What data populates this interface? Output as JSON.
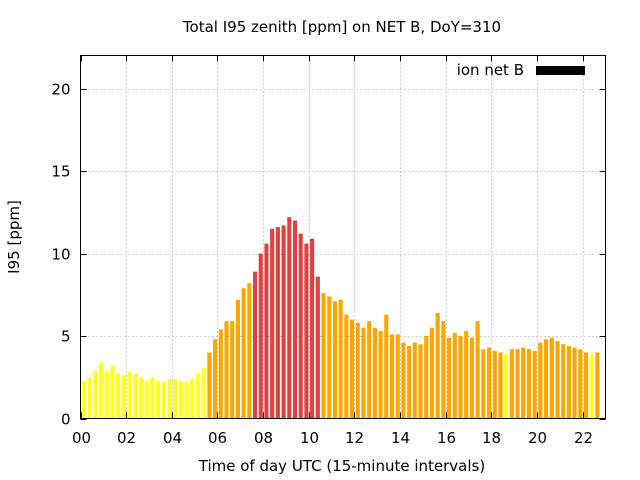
{
  "chart_data": {
    "type": "bar",
    "title": "Total I95 zenith [ppm] on NET B, DoY=310",
    "xlabel": "Time of day UTC (15-minute intervals)",
    "ylabel": "I95 [ppm]",
    "legend": {
      "label": "ion net B",
      "color": "#000000",
      "placement": "top-right"
    },
    "xlim": [
      0,
      23
    ],
    "ylim": [
      0,
      22
    ],
    "grid": true,
    "x_ticks": [
      {
        "value": 0,
        "label": "00"
      },
      {
        "value": 2,
        "label": "02"
      },
      {
        "value": 4,
        "label": "04"
      },
      {
        "value": 6,
        "label": "06"
      },
      {
        "value": 8,
        "label": "08"
      },
      {
        "value": 10,
        "label": "10"
      },
      {
        "value": 12,
        "label": "12"
      },
      {
        "value": 14,
        "label": "14"
      },
      {
        "value": 16,
        "label": "16"
      },
      {
        "value": 18,
        "label": "18"
      },
      {
        "value": 20,
        "label": "20"
      },
      {
        "value": 22,
        "label": "22"
      }
    ],
    "y_ticks": [
      {
        "value": 0,
        "label": "0"
      },
      {
        "value": 5,
        "label": "5"
      },
      {
        "value": 10,
        "label": "10"
      },
      {
        "value": 15,
        "label": "15"
      },
      {
        "value": 20,
        "label": "20"
      }
    ],
    "interval_hours": 0.25,
    "values": [
      2.3,
      2.5,
      2.9,
      3.4,
      2.9,
      3.2,
      2.7,
      2.6,
      2.8,
      2.7,
      2.5,
      2.3,
      2.5,
      2.3,
      2.2,
      2.4,
      2.4,
      2.3,
      2.2,
      2.4,
      2.7,
      3.1,
      4.0,
      4.8,
      5.4,
      5.9,
      5.9,
      7.2,
      7.9,
      8.2,
      8.9,
      10.0,
      10.6,
      11.5,
      11.6,
      11.7,
      12.2,
      12.0,
      11.2,
      10.6,
      10.9,
      8.6,
      7.6,
      7.4,
      7.1,
      7.2,
      6.3,
      6.0,
      5.8,
      5.5,
      5.9,
      5.5,
      5.3,
      6.3,
      5.1,
      5.1,
      4.6,
      4.4,
      4.6,
      4.5,
      5.0,
      5.5,
      6.4,
      5.9,
      4.9,
      5.2,
      5.0,
      5.3,
      4.9,
      5.9,
      4.2,
      4.3,
      4.1,
      4.0,
      3.9,
      4.2,
      4.2,
      4.3,
      4.2,
      4.1,
      4.6,
      4.8,
      4.9,
      4.7,
      4.5,
      4.4,
      4.3,
      4.2,
      4.0,
      3.9,
      4.0
    ],
    "color_scale": [
      {
        "min": 0,
        "max": 4,
        "color": "#ffff22"
      },
      {
        "min": 4,
        "max": 8.5,
        "color": "#ffa500"
      },
      {
        "min": 8.5,
        "max": 100,
        "color": "#e04040"
      }
    ]
  }
}
